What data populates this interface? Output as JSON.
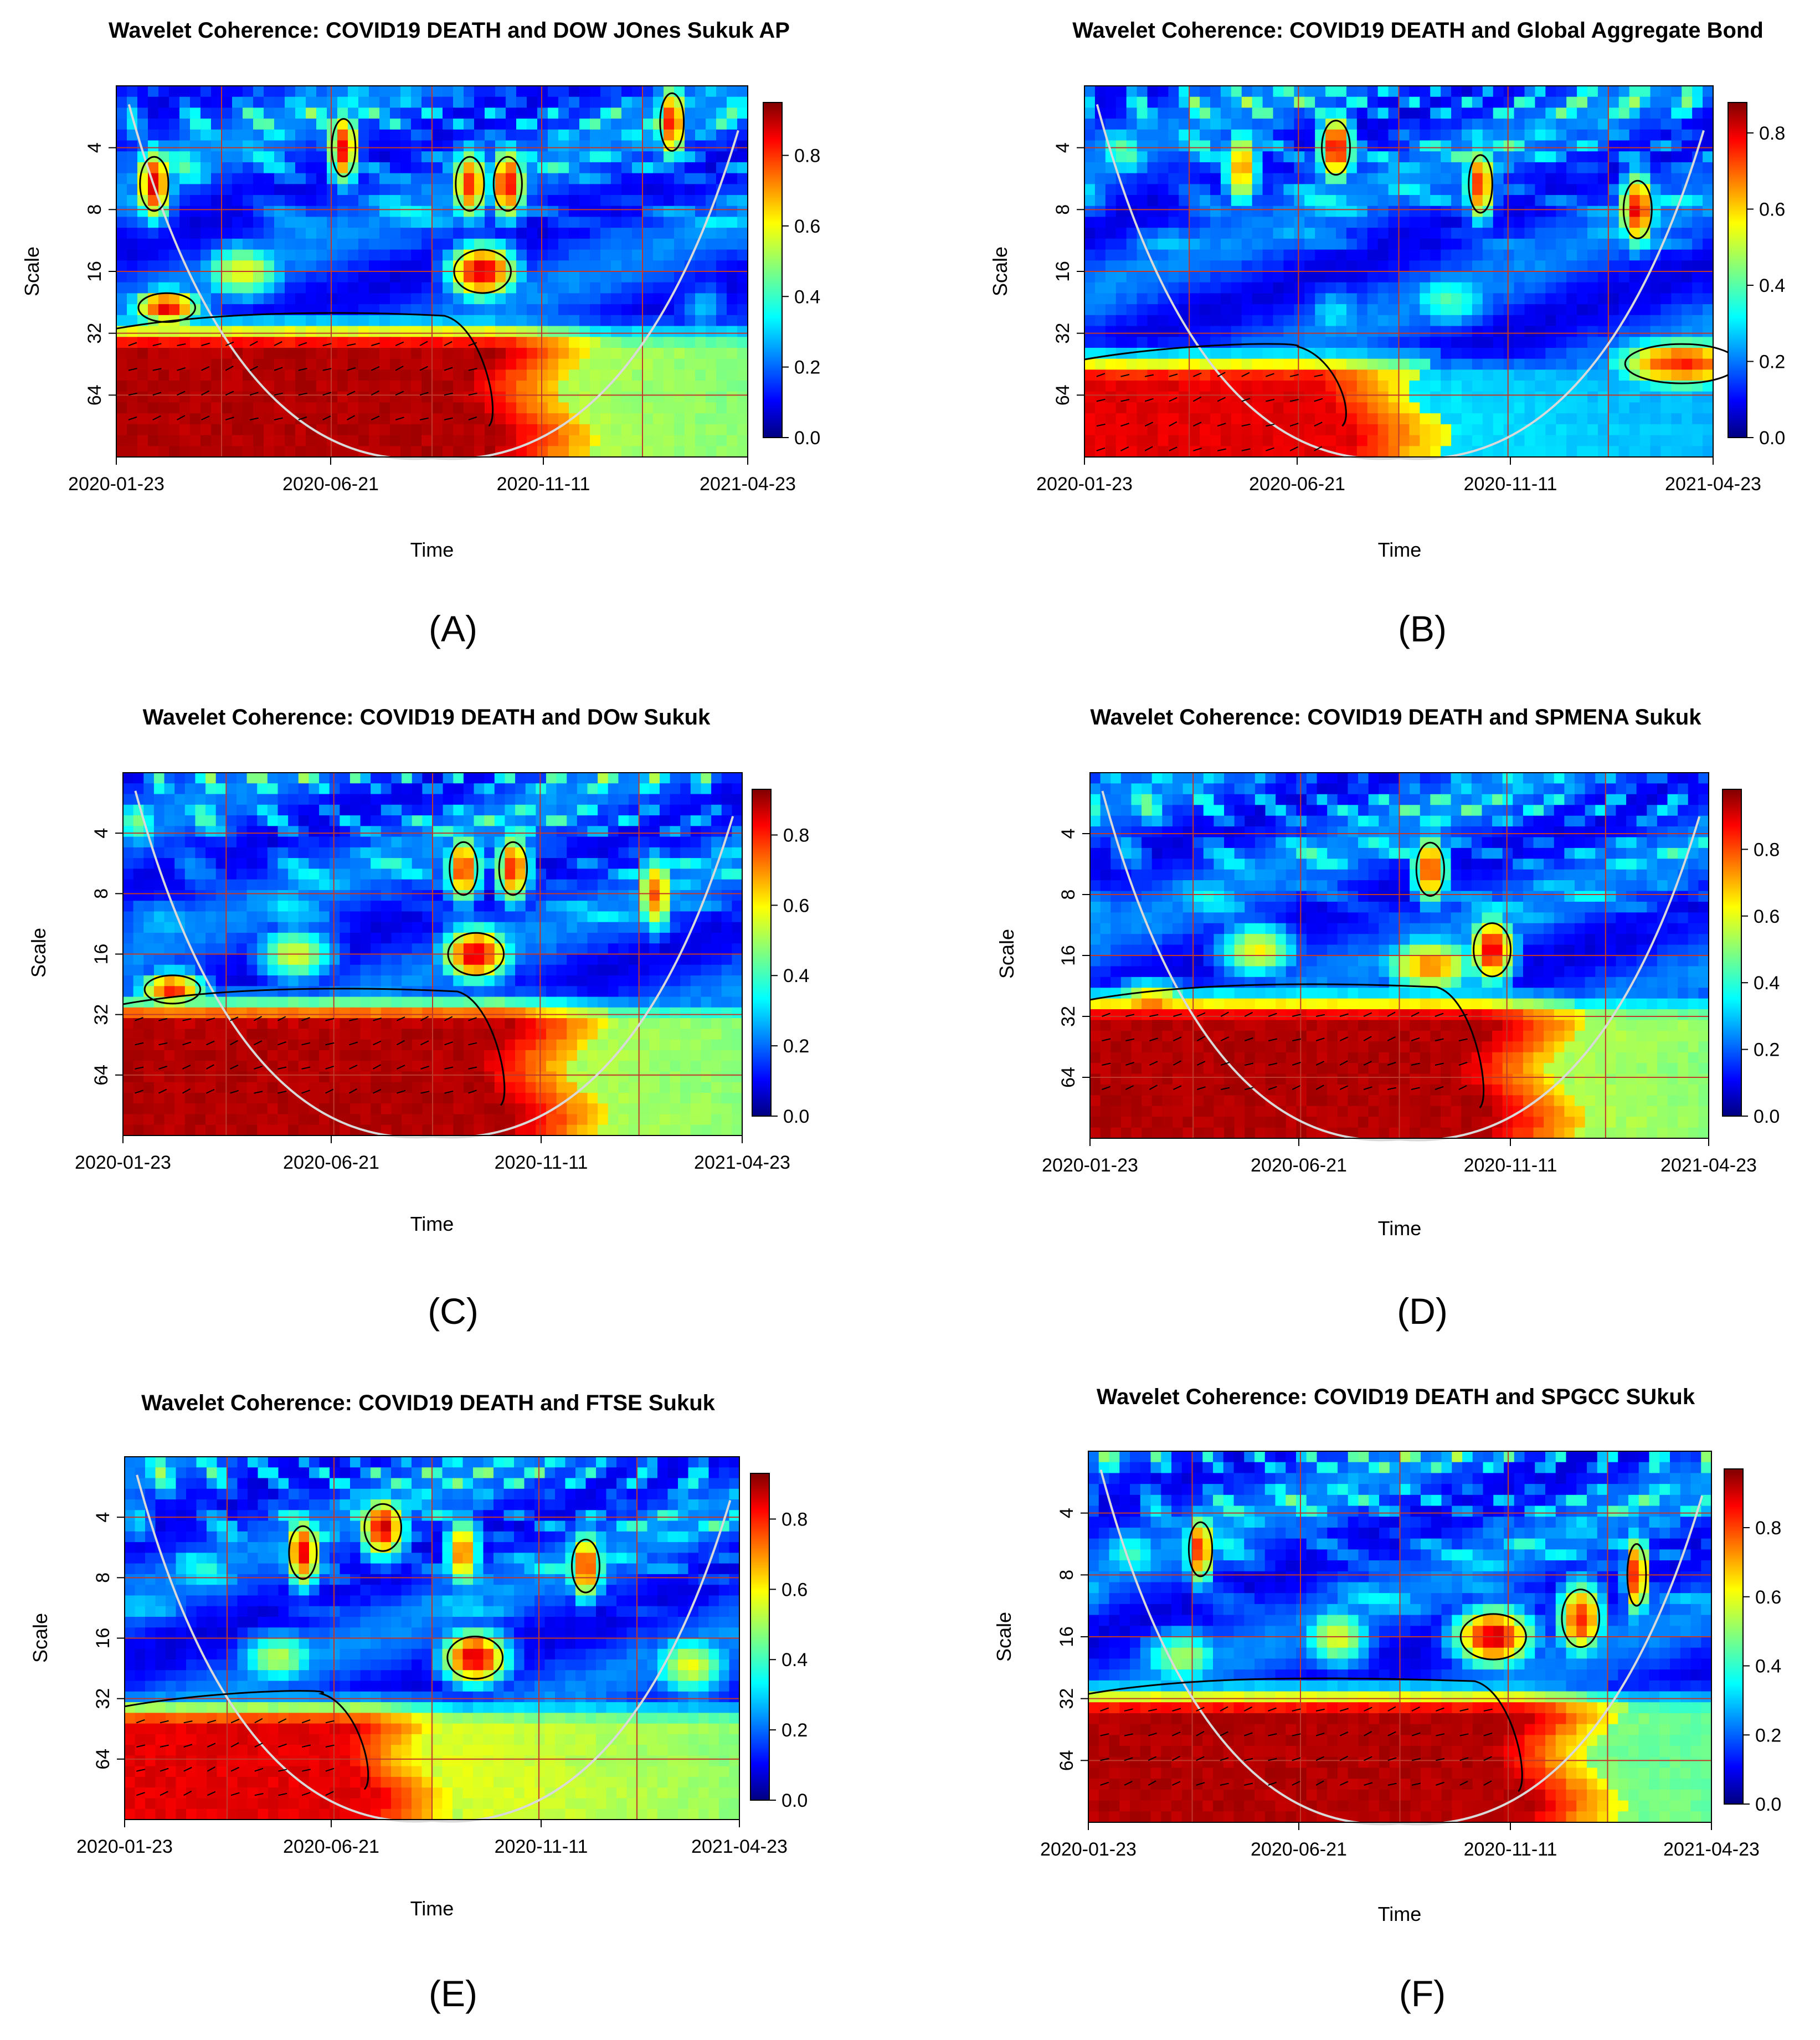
{
  "chart_data": [
    {
      "panel": "(A)",
      "type": "heatmap",
      "title": "Wavelet Coherence: COVID19 DEATH and DOW JOnes Sukuk AP",
      "xlabel": "Time",
      "ylabel": "Scale",
      "x_tick_labels": [
        "2020-01-23",
        "2020-06-21",
        "2020-11-11",
        "2021-04-23"
      ],
      "y_tick_labels": [
        "4",
        "8",
        "16",
        "32",
        "64"
      ],
      "colorbar_ticks": [
        "0.0",
        "0.2",
        "0.4",
        "0.6",
        "0.8"
      ],
      "colorbar_max": 0.95,
      "blobs": [
        {
          "t": 0.08,
          "s": 24,
          "v": 0.9,
          "a": 0.06,
          "b": 3.0
        },
        {
          "t": 0.2,
          "s": 16,
          "v": 0.62,
          "a": 0.07,
          "b": 2.0
        },
        {
          "t": 0.58,
          "s": 16,
          "v": 0.93,
          "a": 0.06,
          "b": 2.0
        },
        {
          "t": 0.93,
          "s": 24,
          "v": 0.3,
          "a": 0.05,
          "b": 2.0
        },
        {
          "t": 0.06,
          "s": 6,
          "v": 0.93,
          "a": 0.03,
          "b": 1.6
        },
        {
          "t": 0.36,
          "s": 4,
          "v": 0.88,
          "a": 0.025,
          "b": 1.5
        },
        {
          "t": 0.56,
          "s": 6,
          "v": 0.85,
          "a": 0.03,
          "b": 1.6
        },
        {
          "t": 0.62,
          "s": 6,
          "v": 0.9,
          "a": 0.03,
          "b": 1.6
        },
        {
          "t": 0.88,
          "s": 3,
          "v": 0.88,
          "a": 0.025,
          "b": 1.5
        }
      ]
    },
    {
      "panel": "(B)",
      "type": "heatmap",
      "title": "Wavelet Coherence: COVID19 DEATH and Global Aggregate Bond",
      "xlabel": "Time",
      "ylabel": "Scale",
      "x_tick_labels": [
        "2020-01-23",
        "2020-06-21",
        "2020-11-11",
        "2021-04-23"
      ],
      "y_tick_labels": [
        "4",
        "8",
        "16",
        "32",
        "64"
      ],
      "colorbar_ticks": [
        "0.0",
        "0.2",
        "0.4",
        "0.6",
        "0.8"
      ],
      "colorbar_max": 0.88,
      "blobs": [
        {
          "t": 0.95,
          "s": 45,
          "v": 0.85,
          "a": 0.12,
          "b": 2.2
        },
        {
          "t": 0.58,
          "s": 22,
          "v": 0.45,
          "a": 0.08,
          "b": 2.0
        },
        {
          "t": 0.4,
          "s": 26,
          "v": 0.35,
          "a": 0.06,
          "b": 1.8
        },
        {
          "t": 0.4,
          "s": 4,
          "v": 0.9,
          "a": 0.03,
          "b": 1.6
        },
        {
          "t": 0.63,
          "s": 6,
          "v": 0.85,
          "a": 0.025,
          "b": 1.5
        },
        {
          "t": 0.88,
          "s": 8,
          "v": 0.9,
          "a": 0.03,
          "b": 1.5
        },
        {
          "t": 0.25,
          "s": 5,
          "v": 0.75,
          "a": 0.03,
          "b": 1.5
        }
      ]
    },
    {
      "panel": "(C)",
      "type": "heatmap",
      "title": "Wavelet Coherence: COVID19 DEATH and DOw Sukuk",
      "xlabel": "Time",
      "ylabel": "Scale",
      "x_tick_labels": [
        "2020-01-23",
        "2020-06-21",
        "2020-11-11",
        "2021-04-23"
      ],
      "y_tick_labels": [
        "4",
        "8",
        "16",
        "32",
        "64"
      ],
      "colorbar_ticks": [
        "0.0",
        "0.2",
        "0.4",
        "0.6",
        "0.8"
      ],
      "colorbar_max": 0.93,
      "blobs": [
        {
          "t": 0.08,
          "s": 24,
          "v": 0.85,
          "a": 0.06,
          "b": 3.0
        },
        {
          "t": 0.28,
          "s": 16,
          "v": 0.6,
          "a": 0.07,
          "b": 2.0
        },
        {
          "t": 0.57,
          "s": 16,
          "v": 0.93,
          "a": 0.06,
          "b": 2.0
        },
        {
          "t": 0.55,
          "s": 6,
          "v": 0.85,
          "a": 0.03,
          "b": 1.6
        },
        {
          "t": 0.63,
          "s": 6,
          "v": 0.85,
          "a": 0.03,
          "b": 1.6
        },
        {
          "t": 0.86,
          "s": 8,
          "v": 0.8,
          "a": 0.03,
          "b": 1.5
        }
      ]
    },
    {
      "panel": "(D)",
      "type": "heatmap",
      "title": "Wavelet Coherence: COVID19 DEATH and SPMENA Sukuk",
      "xlabel": "Time",
      "ylabel": "Scale",
      "x_tick_labels": [
        "2020-01-23",
        "2020-06-21",
        "2020-11-11",
        "2021-04-23"
      ],
      "y_tick_labels": [
        "4",
        "8",
        "16",
        "32",
        "64"
      ],
      "colorbar_ticks": [
        "0.0",
        "0.2",
        "0.4",
        "0.6",
        "0.8"
      ],
      "colorbar_max": 0.98,
      "blobs": [
        {
          "t": 0.1,
          "s": 28,
          "v": 0.78,
          "a": 0.07,
          "b": 2.5
        },
        {
          "t": 0.27,
          "s": 15,
          "v": 0.62,
          "a": 0.07,
          "b": 2.0
        },
        {
          "t": 0.55,
          "s": 18,
          "v": 0.75,
          "a": 0.08,
          "b": 2.0
        },
        {
          "t": 0.65,
          "s": 15,
          "v": 0.9,
          "a": 0.04,
          "b": 1.6
        },
        {
          "t": 0.55,
          "s": 6,
          "v": 0.85,
          "a": 0.03,
          "b": 1.6
        }
      ]
    },
    {
      "panel": "(E)",
      "type": "heatmap",
      "title": "Wavelet Coherence: COVID19 DEATH and FTSE Sukuk",
      "xlabel": "Time",
      "ylabel": "Scale",
      "x_tick_labels": [
        "2020-01-23",
        "2020-06-21",
        "2020-11-11",
        "2021-04-23"
      ],
      "y_tick_labels": [
        "4",
        "8",
        "16",
        "32",
        "64"
      ],
      "colorbar_ticks": [
        "0.0",
        "0.2",
        "0.4",
        "0.6",
        "0.8"
      ],
      "colorbar_max": 0.93,
      "blobs": [
        {
          "t": 0.57,
          "s": 20,
          "v": 0.92,
          "a": 0.06,
          "b": 2.0
        },
        {
          "t": 0.92,
          "s": 22,
          "v": 0.6,
          "a": 0.07,
          "b": 1.8
        },
        {
          "t": 0.25,
          "s": 20,
          "v": 0.55,
          "a": 0.07,
          "b": 2.0
        },
        {
          "t": 0.29,
          "s": 6,
          "v": 0.9,
          "a": 0.03,
          "b": 1.6
        },
        {
          "t": 0.42,
          "s": 4.5,
          "v": 0.92,
          "a": 0.04,
          "b": 1.8
        },
        {
          "t": 0.55,
          "s": 6,
          "v": 0.8,
          "a": 0.03,
          "b": 1.6
        },
        {
          "t": 0.75,
          "s": 7,
          "v": 0.85,
          "a": 0.03,
          "b": 1.6
        }
      ]
    },
    {
      "panel": "(F)",
      "type": "heatmap",
      "title": "Wavelet Coherence: COVID19 DEATH and SPGCC SUkuk",
      "xlabel": "Time",
      "ylabel": "Scale",
      "x_tick_labels": [
        "2020-01-23",
        "2020-06-21",
        "2020-11-11",
        "2021-04-23"
      ],
      "y_tick_labels": [
        "4",
        "8",
        "16",
        "32",
        "64"
      ],
      "colorbar_ticks": [
        "0.0",
        "0.2",
        "0.4",
        "0.6",
        "0.8"
      ],
      "colorbar_max": 0.97,
      "blobs": [
        {
          "t": 0.65,
          "s": 16,
          "v": 0.93,
          "a": 0.07,
          "b": 1.9
        },
        {
          "t": 0.4,
          "s": 16,
          "v": 0.6,
          "a": 0.06,
          "b": 1.8
        },
        {
          "t": 0.15,
          "s": 20,
          "v": 0.55,
          "a": 0.07,
          "b": 2.0
        },
        {
          "t": 0.79,
          "s": 13,
          "v": 0.85,
          "a": 0.04,
          "b": 1.5
        },
        {
          "t": 0.88,
          "s": 8,
          "v": 0.9,
          "a": 0.02,
          "b": 1.4
        },
        {
          "t": 0.18,
          "s": 6,
          "v": 0.85,
          "a": 0.025,
          "b": 1.6
        }
      ]
    }
  ]
}
